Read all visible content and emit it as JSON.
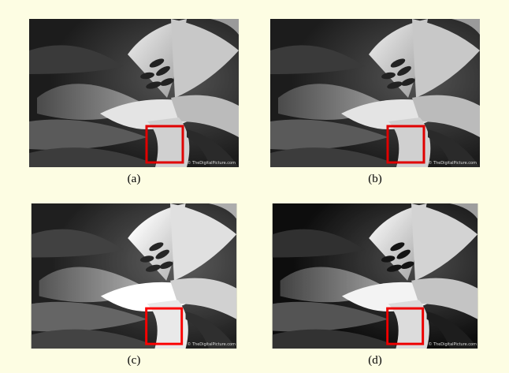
{
  "panels": [
    {
      "label": "(a)",
      "watermark": "© TheDigitalPicture.com"
    },
    {
      "label": "(b)",
      "watermark": "© TheDigitalPicture.com"
    },
    {
      "label": "(c)",
      "watermark": "© TheDigitalPicture.com"
    },
    {
      "label": "(d)",
      "watermark": "© TheDigitalPicture.com"
    }
  ]
}
